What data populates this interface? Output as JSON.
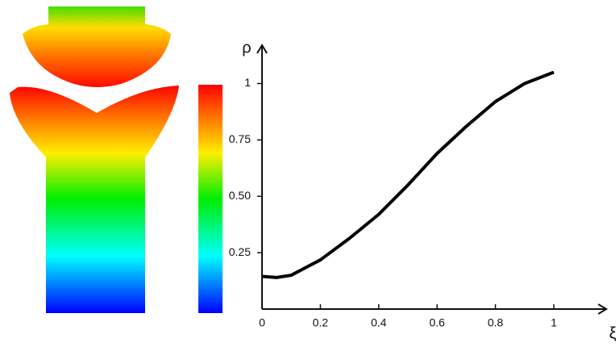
{
  "chart_data": {
    "type": "line",
    "x_label": "ξ",
    "y_label": "ρ",
    "x": [
      0,
      0.05,
      0.1,
      0.2,
      0.3,
      0.4,
      0.5,
      0.6,
      0.7,
      0.8,
      0.9,
      1.0
    ],
    "series": [
      {
        "color": "#000000",
        "values": [
          0.145,
          0.14,
          0.15,
          0.218,
          0.314,
          0.42,
          0.55,
          0.69,
          0.81,
          0.92,
          1.0,
          1.05
        ]
      }
    ],
    "xlim": [
      0,
      1.18
    ],
    "ylim": [
      0,
      1.17
    ],
    "xticks": [
      0,
      0.2,
      0.4,
      0.6,
      0.8,
      1
    ],
    "yticks": [
      0.25,
      {
        "value": 0.5,
        "label": "0.50"
      },
      0.75,
      1
    ],
    "grid": false
  }
}
